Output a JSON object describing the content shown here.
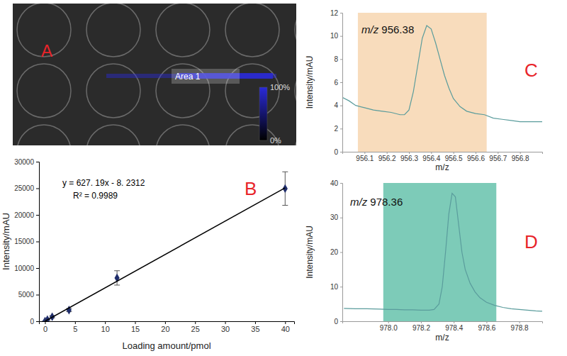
{
  "chart_data": [
    {
      "type": "image",
      "panel_label": "A",
      "annotation": "Area 1",
      "color": "#2a2ad8",
      "colorbar": {
        "range": [
          0,
          100
        ],
        "ticks": [
          {
            "value": 0,
            "label": "0%"
          },
          {
            "value": 100,
            "label": "100%"
          }
        ],
        "colors": [
          "#000000",
          "#2a2ad8"
        ]
      }
    },
    {
      "type": "scatter",
      "panel_label": "B",
      "x_label": "Loading amount/pmol",
      "y_label": "Intensity/mAU",
      "annotations": [
        "y = 627. 19x - 8. 2312",
        "R² = 0.9989"
      ],
      "xlim": [
        -1,
        41.5
      ],
      "xticks": [
        0,
        5,
        10,
        15,
        20,
        25,
        30,
        35,
        40
      ],
      "ylim": [
        0,
        30000
      ],
      "yticks": [
        0,
        5000,
        10000,
        15000,
        20000,
        25000,
        30000
      ],
      "series": [
        {
          "type": "scatter",
          "color": "#1f2d6b",
          "marker": "diamond",
          "x": [
            0,
            0.4,
            1.2,
            4,
            12,
            40
          ],
          "values": [
            0,
            300,
            850,
            2100,
            8150,
            24950
          ],
          "errors": [
            50,
            100,
            200,
            300,
            1350,
            3150
          ]
        },
        {
          "type": "line",
          "color": "#000000",
          "x": [
            0,
            40
          ],
          "values": [
            0,
            25080
          ]
        }
      ]
    },
    {
      "type": "line",
      "panel_label": "C",
      "annotation": "m/z 956.38",
      "x_label": "m/z",
      "y_label": "Intensity/mAU",
      "xlim": [
        956.0,
        956.9
      ],
      "xticks": [
        956.1,
        956.2,
        956.3,
        956.4,
        956.5,
        956.6,
        956.7,
        956.8
      ],
      "ylim": [
        0,
        12
      ],
      "yticks": [
        0,
        2,
        4,
        6,
        8,
        10,
        12
      ],
      "band": {
        "range": [
          956.07,
          956.65
        ],
        "color": "#f8dcbc"
      },
      "series": [
        {
          "color": "#5a9c9c",
          "x": [
            956.0,
            956.03,
            956.06,
            956.1,
            956.14,
            956.18,
            956.22,
            956.26,
            956.28,
            956.3,
            956.32,
            956.34,
            956.36,
            956.38,
            956.4,
            956.42,
            956.44,
            956.46,
            956.48,
            956.5,
            956.53,
            956.56,
            956.6,
            956.64,
            956.68,
            956.72,
            956.76,
            956.8,
            956.85,
            956.9
          ],
          "values": [
            4.7,
            4.4,
            4.0,
            3.8,
            3.6,
            3.5,
            3.4,
            3.2,
            3.2,
            3.6,
            5.2,
            7.5,
            9.8,
            10.9,
            10.6,
            9.4,
            8.0,
            6.6,
            5.5,
            4.6,
            3.9,
            3.5,
            3.3,
            3.2,
            2.9,
            2.8,
            2.7,
            2.6,
            2.6,
            2.6
          ]
        }
      ]
    },
    {
      "type": "line",
      "panel_label": "D",
      "annotation": "m/z 978.36",
      "x_label": "m/z",
      "y_label": "Intensity/mAU",
      "xlim": [
        977.72,
        978.94
      ],
      "xticks": [
        {
          "value": 978,
          "label": "978.0"
        },
        978.2,
        978.4,
        978.6,
        978.8
      ],
      "ylim": [
        0,
        40
      ],
      "yticks": [
        0,
        10,
        20,
        30,
        40
      ],
      "band": {
        "range": [
          977.97,
          978.66
        ],
        "color": "#7dcbb8"
      },
      "series": [
        {
          "color": "#5a9c9c",
          "x": [
            977.73,
            977.8,
            977.87,
            977.95,
            978.0,
            978.05,
            978.1,
            978.15,
            978.2,
            978.25,
            978.28,
            978.31,
            978.33,
            978.35,
            978.37,
            978.39,
            978.41,
            978.43,
            978.45,
            978.47,
            978.5,
            978.53,
            978.56,
            978.6,
            978.65,
            978.7,
            978.75,
            978.8,
            978.85,
            978.9,
            978.94
          ],
          "values": [
            3.7,
            3.6,
            3.6,
            3.5,
            3.4,
            3.4,
            3.3,
            3.3,
            3.2,
            3.2,
            3.4,
            5,
            10,
            20,
            31,
            37,
            36,
            28,
            20,
            15,
            11,
            8.5,
            6.8,
            5.5,
            4.6,
            4.0,
            3.6,
            3.4,
            3.2,
            3.0,
            2.9
          ]
        }
      ]
    }
  ]
}
